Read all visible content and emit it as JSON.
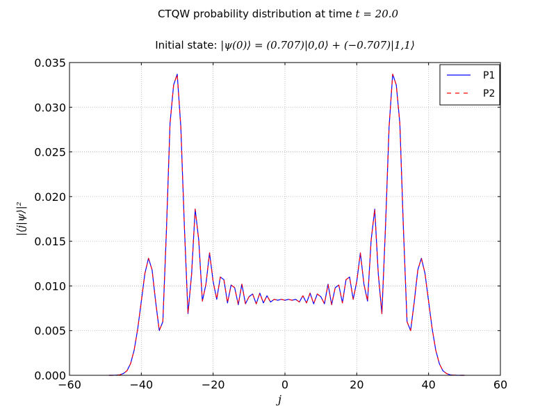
{
  "header": {
    "title_prefix": "CTQW probability distribution at time ",
    "title_math": "t = 20.0",
    "subtitle_prefix": "Initial state: ",
    "subtitle_math": "|ψ(0)⟩ = (0.707)|0,0⟩ + (−0.707)|1,1⟩"
  },
  "colors": {
    "P1": "#0000ff",
    "P2": "#ff0000",
    "grid": "#b0b0b0",
    "axis": "#000000"
  },
  "chart_data": {
    "type": "line",
    "title": "CTQW probability distribution at time t = 20.0",
    "subtitle": "Initial state: |ψ(0)⟩ = (0.707)|0,0⟩ + (−0.707)|1,1⟩",
    "xlabel": "j",
    "ylabel": "|⟨j|ψ⟩|²",
    "xlim": [
      -60,
      60
    ],
    "ylim": [
      0,
      0.035
    ],
    "xticks": [
      "−60",
      "−40",
      "−20",
      "0",
      "20",
      "40",
      "60"
    ],
    "yticks": [
      "0.000",
      "0.005",
      "0.010",
      "0.015",
      "0.020",
      "0.025",
      "0.030",
      "0.035"
    ],
    "grid": true,
    "legend_position": "top-right",
    "x": [
      -49,
      -48,
      -47,
      -46,
      -45,
      -44,
      -43,
      -42,
      -41,
      -40,
      -39,
      -38,
      -37,
      -36,
      -35,
      -34,
      -33,
      -32,
      -31,
      -30,
      -29,
      -28,
      -27,
      -26,
      -25,
      -24,
      -23,
      -22,
      -21,
      -20,
      -19,
      -18,
      -17,
      -16,
      -15,
      -14,
      -13,
      -12,
      -11,
      -10,
      -9,
      -8,
      -7,
      -6,
      -5,
      -4,
      -3,
      -2,
      -1,
      0,
      1,
      2,
      3,
      4,
      5,
      6,
      7,
      8,
      9,
      10,
      11,
      12,
      13,
      14,
      15,
      16,
      17,
      18,
      19,
      20,
      21,
      22,
      23,
      24,
      25,
      26,
      27,
      28,
      29,
      30,
      31,
      32,
      33,
      34,
      35,
      36,
      37,
      38,
      39,
      40,
      41,
      42,
      43,
      44,
      45,
      46,
      47,
      48,
      49,
      50
    ],
    "series": [
      {
        "name": "P1",
        "style": "solid",
        "values": [
          0,
          0,
          2e-05,
          5e-05,
          0.0002,
          0.0005,
          0.0013,
          0.0028,
          0.0052,
          0.0083,
          0.0114,
          0.0131,
          0.0118,
          0.0082,
          0.005,
          0.006,
          0.0163,
          0.0282,
          0.0325,
          0.0337,
          0.0278,
          0.0166,
          0.0069,
          0.0113,
          0.0186,
          0.0151,
          0.0083,
          0.0102,
          0.0137,
          0.0105,
          0.0085,
          0.011,
          0.0107,
          0.0081,
          0.0101,
          0.0098,
          0.0079,
          0.0102,
          0.008,
          0.0088,
          0.0091,
          0.008,
          0.0092,
          0.0081,
          0.0089,
          0.0082,
          0.0085,
          0.0084,
          0.0085,
          0.0084,
          0.0085,
          0.0084,
          0.0085,
          0.0082,
          0.0089,
          0.0081,
          0.0092,
          0.008,
          0.0091,
          0.0088,
          0.008,
          0.0102,
          0.0079,
          0.0098,
          0.0101,
          0.0081,
          0.0107,
          0.011,
          0.0085,
          0.0105,
          0.0137,
          0.0102,
          0.0083,
          0.0151,
          0.0186,
          0.0113,
          0.0069,
          0.0166,
          0.0278,
          0.0337,
          0.0325,
          0.0282,
          0.0163,
          0.006,
          0.005,
          0.0082,
          0.0118,
          0.0131,
          0.0114,
          0.0083,
          0.0052,
          0.0028,
          0.0013,
          0.0005,
          0.0002,
          5e-05,
          2e-05,
          0,
          0,
          0
        ]
      },
      {
        "name": "P2",
        "style": "dashed",
        "values": [
          0,
          0,
          2e-05,
          5e-05,
          0.0002,
          0.0005,
          0.0013,
          0.0028,
          0.0052,
          0.0083,
          0.0114,
          0.0131,
          0.0118,
          0.0082,
          0.005,
          0.006,
          0.0163,
          0.0282,
          0.0325,
          0.0337,
          0.0278,
          0.0166,
          0.0069,
          0.0113,
          0.0186,
          0.0151,
          0.0083,
          0.0102,
          0.0137,
          0.0105,
          0.0085,
          0.011,
          0.0107,
          0.0081,
          0.0101,
          0.0098,
          0.0079,
          0.0102,
          0.008,
          0.0088,
          0.0091,
          0.008,
          0.0092,
          0.0081,
          0.0089,
          0.0082,
          0.0085,
          0.0084,
          0.0085,
          0.0084,
          0.0085,
          0.0084,
          0.0085,
          0.0082,
          0.0089,
          0.0081,
          0.0092,
          0.008,
          0.0091,
          0.0088,
          0.008,
          0.0102,
          0.0079,
          0.0098,
          0.0101,
          0.0081,
          0.0107,
          0.011,
          0.0085,
          0.0105,
          0.0137,
          0.0102,
          0.0083,
          0.0151,
          0.0186,
          0.0113,
          0.0069,
          0.0166,
          0.0278,
          0.0337,
          0.0325,
          0.0282,
          0.0163,
          0.006,
          0.005,
          0.0082,
          0.0118,
          0.0131,
          0.0114,
          0.0083,
          0.0052,
          0.0028,
          0.0013,
          0.0005,
          0.0002,
          5e-05,
          2e-05,
          0,
          0,
          0
        ]
      }
    ]
  }
}
